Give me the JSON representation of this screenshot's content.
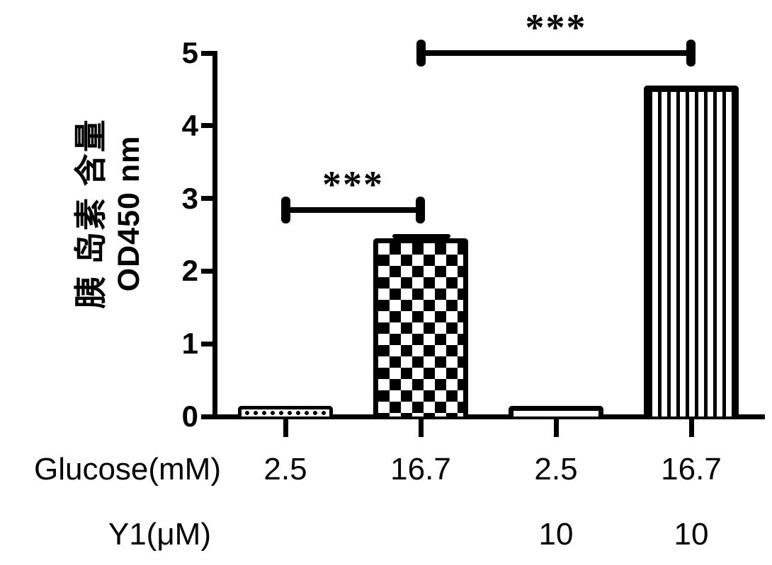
{
  "figure": {
    "background": "#ffffff",
    "ink_color": "#000000"
  },
  "chart_data": {
    "type": "bar",
    "title": "",
    "ylabel": "胰 岛素 含量",
    "ylabel_sub": "OD450 nm",
    "ylim": [
      0,
      5
    ],
    "yticks": [
      "0",
      "1",
      "2",
      "3",
      "4",
      "5"
    ],
    "grid": "off",
    "legend": "none",
    "bars": [
      {
        "glucose": "2.5",
        "y1": "",
        "value": 0.15,
        "pattern": "dots",
        "error_cap": false
      },
      {
        "glucose": "16.7",
        "y1": "",
        "value": 2.45,
        "pattern": "checker",
        "error_cap": true
      },
      {
        "glucose": "2.5",
        "y1": "10",
        "value": 0.15,
        "pattern": "plain",
        "error_cap": false
      },
      {
        "glucose": "16.7",
        "y1": "10",
        "value": 4.55,
        "pattern": "vstripes",
        "error_cap": false
      }
    ],
    "x_rows": [
      {
        "label": "Glucose(mM)",
        "values": [
          "2.5",
          "16.7",
          "2.5",
          "16.7"
        ]
      },
      {
        "label": "Y1(μM)",
        "values": [
          "",
          "",
          "10",
          "10"
        ]
      }
    ],
    "significance": [
      {
        "from_bar": 0,
        "to_bar": 1,
        "label": "***",
        "y_value": 2.84
      },
      {
        "from_bar": 1,
        "to_bar": 3,
        "label": "***",
        "y_value": 5.0
      }
    ]
  }
}
